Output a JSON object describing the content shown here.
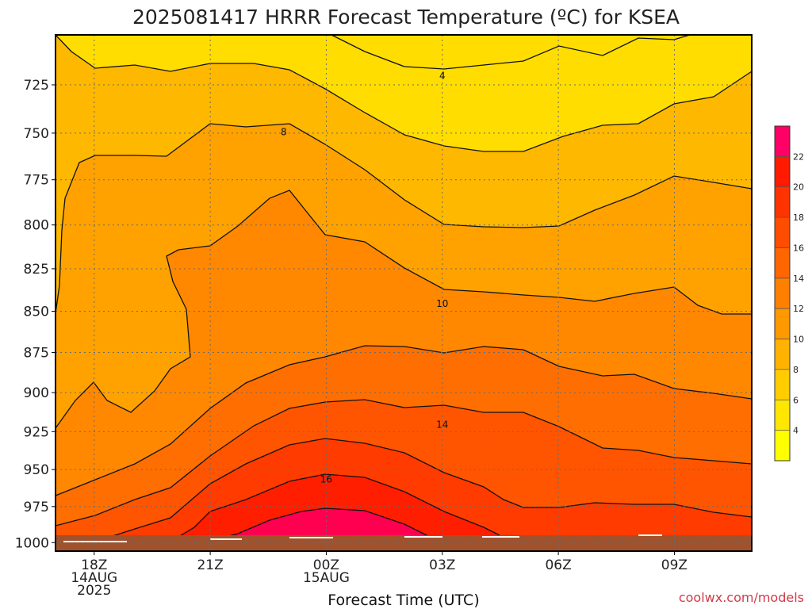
{
  "chart_data": {
    "type": "contour",
    "title": "2025081417 HRRR Forecast Temperature (ºC) for KSEA",
    "xlabel": "Forecast Time (UTC)",
    "ylabel": "",
    "credit": "coolwx.com/models",
    "x_ticks": [
      {
        "label": "18Z",
        "label2": "14AUG",
        "label3": "2025",
        "hour": 18
      },
      {
        "label": "21Z",
        "label2": "",
        "label3": "",
        "hour": 21
      },
      {
        "label": "00Z",
        "label2": "15AUG",
        "label3": "",
        "hour": 24
      },
      {
        "label": "03Z",
        "label2": "",
        "label3": "",
        "hour": 27
      },
      {
        "label": "06Z",
        "label2": "",
        "label3": "",
        "hour": 30
      },
      {
        "label": "09Z",
        "label2": "",
        "label3": "",
        "hour": 33
      }
    ],
    "xlim": [
      17,
      35
    ],
    "y_ticks": [
      "725",
      "750",
      "775",
      "800",
      "825",
      "850",
      "875",
      "900",
      "925",
      "950",
      "975",
      "1000"
    ],
    "ylim": [
      700,
      1006
    ],
    "y_scale": "log",
    "grid": true,
    "colorbar": {
      "labels": [
        "22",
        "20",
        "18",
        "16",
        "14",
        "12",
        "10",
        "8",
        "6",
        "4"
      ],
      "levels": [
        2,
        4,
        6,
        8,
        10,
        12,
        14,
        16,
        18,
        20,
        22,
        24
      ],
      "colors": [
        "#ffff00",
        "#ffe600",
        "#ffcc00",
        "#ffb300",
        "#ff9900",
        "#ff8000",
        "#ff6600",
        "#ff4d00",
        "#ff3300",
        "#ff1a00",
        "#ff0066"
      ]
    },
    "ground_color": "#a0522d",
    "contour_labels": [
      {
        "value": "4",
        "hour": 27,
        "p": 720
      },
      {
        "value": "8",
        "hour": 22.9,
        "p": 749
      },
      {
        "value": "10",
        "hour": 27,
        "p": 845
      },
      {
        "value": "14",
        "hour": 27,
        "p": 920
      },
      {
        "value": "16",
        "hour": 24,
        "p": 956
      }
    ]
  }
}
